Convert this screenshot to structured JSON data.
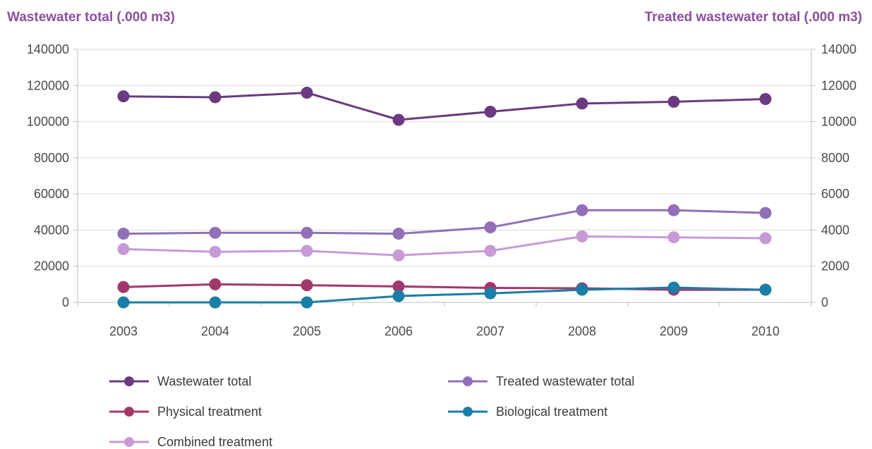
{
  "chart_data": {
    "type": "line",
    "title": "",
    "y_left_label": "Wastewater total (.000 m3)",
    "y_right_label": "Treated wastewater total (.000 m3)",
    "xlabel": "",
    "categories": [
      "2003",
      "2004",
      "2005",
      "2006",
      "2007",
      "2008",
      "2009",
      "2010"
    ],
    "y_left_lim": [
      0,
      140000
    ],
    "y_left_ticks": [
      "0",
      "20000",
      "40000",
      "60000",
      "80000",
      "100000",
      "120000",
      "140000"
    ],
    "y_right_lim": [
      0,
      14000
    ],
    "y_right_ticks": [
      "0",
      "2000",
      "4000",
      "6000",
      "8000",
      "10000",
      "12000",
      "14000"
    ],
    "grid": true,
    "legend_position": "bottom",
    "series": [
      {
        "name": "Wastewater total",
        "axis": "left",
        "color": "#6b3a80",
        "values": [
          114000,
          113500,
          116000,
          101000,
          105500,
          110000,
          111000,
          112500
        ]
      },
      {
        "name": "Treated wastewater total",
        "axis": "right",
        "color": "#9170b8",
        "values": [
          3800,
          3850,
          3850,
          3800,
          4150,
          5100,
          5100,
          4950
        ]
      },
      {
        "name": "Physical treatment",
        "axis": "right",
        "color": "#a2386a",
        "values": [
          850,
          1000,
          950,
          880,
          800,
          780,
          700,
          700
        ]
      },
      {
        "name": "Biological treatment",
        "axis": "right",
        "color": "#1a7ea6",
        "values": [
          0,
          0,
          0,
          350,
          500,
          700,
          820,
          700
        ]
      },
      {
        "name": "Combined treatment",
        "axis": "right",
        "color": "#c79ad6",
        "values": [
          2950,
          2800,
          2850,
          2600,
          2850,
          3650,
          3600,
          3550
        ]
      }
    ]
  }
}
